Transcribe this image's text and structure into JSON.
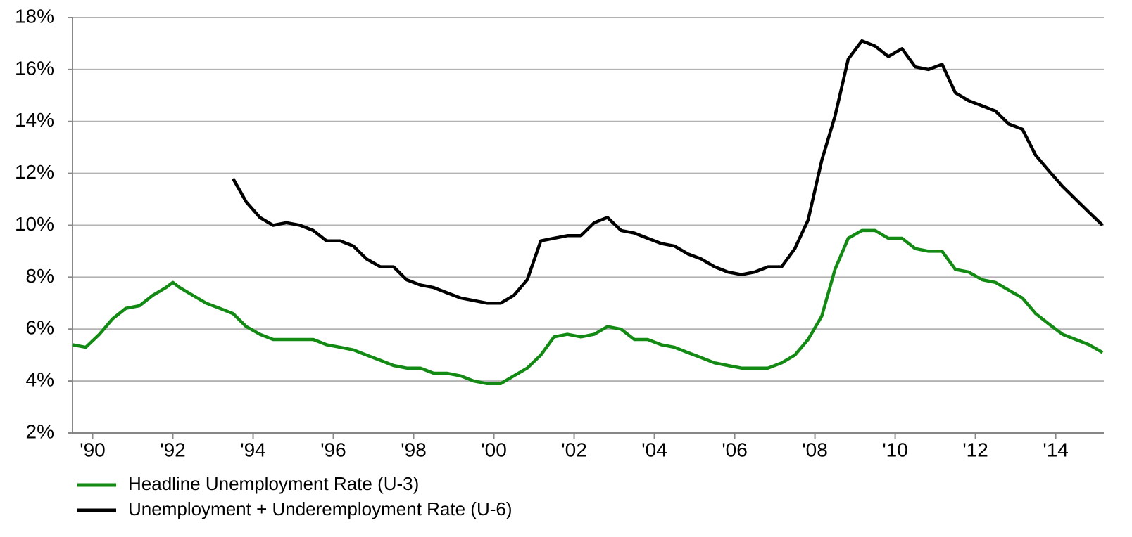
{
  "chart_data": {
    "type": "line",
    "xlim": [
      1990,
      2015.7
    ],
    "xticks": [
      {
        "value": 1990.5,
        "label": "'90"
      },
      {
        "value": 1992.5,
        "label": "'92"
      },
      {
        "value": 1994.5,
        "label": "'94"
      },
      {
        "value": 1996.5,
        "label": "'96"
      },
      {
        "value": 1998.5,
        "label": "'98"
      },
      {
        "value": 2000.5,
        "label": "'00"
      },
      {
        "value": 2002.5,
        "label": "'02"
      },
      {
        "value": 2004.5,
        "label": "'04"
      },
      {
        "value": 2006.5,
        "label": "'06"
      },
      {
        "value": 2008.5,
        "label": "'08"
      },
      {
        "value": 2010.5,
        "label": "'10"
      },
      {
        "value": 2012.5,
        "label": "'12"
      },
      {
        "value": 2014.5,
        "label": "'14"
      }
    ],
    "ylim": [
      2,
      18
    ],
    "yticks": [
      {
        "value": 2,
        "label": "2%"
      },
      {
        "value": 4,
        "label": "4%"
      },
      {
        "value": 6,
        "label": "6%"
      },
      {
        "value": 8,
        "label": "8%"
      },
      {
        "value": 10,
        "label": "10%"
      },
      {
        "value": 12,
        "label": "12%"
      },
      {
        "value": 14,
        "label": "14%"
      },
      {
        "value": 16,
        "label": "16%"
      },
      {
        "value": 18,
        "label": "18%"
      }
    ],
    "grid": true,
    "legend": "bottom-left",
    "series": [
      {
        "name": "Headline Unemployment Rate (U-3)",
        "color": "#138a13",
        "x": [
          1990,
          1990.33,
          1990.67,
          1991,
          1991.33,
          1991.67,
          1992,
          1992.33,
          1992.5,
          1992.67,
          1993,
          1993.33,
          1993.67,
          1994,
          1994.33,
          1994.67,
          1995,
          1995.33,
          1995.67,
          1996,
          1996.33,
          1996.67,
          1997,
          1997.33,
          1997.67,
          1998,
          1998.33,
          1998.67,
          1999,
          1999.33,
          1999.67,
          2000,
          2000.33,
          2000.67,
          2001,
          2001.33,
          2001.67,
          2002,
          2002.33,
          2002.67,
          2003,
          2003.33,
          2003.67,
          2004,
          2004.33,
          2004.67,
          2005,
          2005.33,
          2005.67,
          2006,
          2006.33,
          2006.67,
          2007,
          2007.33,
          2007.67,
          2008,
          2008.33,
          2008.67,
          2009,
          2009.33,
          2009.67,
          2010,
          2010.33,
          2010.67,
          2011,
          2011.33,
          2011.67,
          2012,
          2012.33,
          2012.67,
          2013,
          2013.33,
          2013.67,
          2014,
          2014.33,
          2014.67,
          2015,
          2015.33,
          2015.67
        ],
        "values": [
          5.4,
          5.3,
          5.8,
          6.4,
          6.8,
          6.9,
          7.3,
          7.6,
          7.8,
          7.6,
          7.3,
          7.0,
          6.8,
          6.6,
          6.1,
          5.8,
          5.6,
          5.6,
          5.6,
          5.6,
          5.4,
          5.3,
          5.2,
          5.0,
          4.8,
          4.6,
          4.5,
          4.5,
          4.3,
          4.3,
          4.2,
          4.0,
          3.9,
          3.9,
          4.2,
          4.5,
          5.0,
          5.7,
          5.8,
          5.7,
          5.8,
          6.1,
          6.0,
          5.6,
          5.6,
          5.4,
          5.3,
          5.1,
          4.9,
          4.7,
          4.6,
          4.5,
          4.5,
          4.5,
          4.7,
          5.0,
          5.6,
          6.5,
          8.3,
          9.5,
          9.8,
          9.8,
          9.5,
          9.5,
          9.1,
          9.0,
          9.0,
          8.3,
          8.2,
          7.9,
          7.8,
          7.5,
          7.2,
          6.6,
          6.2,
          5.8,
          5.6,
          5.4,
          5.1
        ]
      },
      {
        "name": "Unemployment + Underemployment Rate (U-6)",
        "color": "#000000",
        "x": [
          1994,
          1994.33,
          1994.67,
          1995,
          1995.33,
          1995.67,
          1996,
          1996.33,
          1996.67,
          1997,
          1997.33,
          1997.67,
          1998,
          1998.33,
          1998.67,
          1999,
          1999.33,
          1999.67,
          2000,
          2000.33,
          2000.67,
          2001,
          2001.33,
          2001.67,
          2002,
          2002.33,
          2002.67,
          2003,
          2003.33,
          2003.67,
          2004,
          2004.33,
          2004.67,
          2005,
          2005.33,
          2005.67,
          2006,
          2006.33,
          2006.67,
          2007,
          2007.33,
          2007.67,
          2008,
          2008.33,
          2008.67,
          2009,
          2009.33,
          2009.67,
          2010,
          2010.33,
          2010.67,
          2011,
          2011.33,
          2011.67,
          2012,
          2012.33,
          2012.67,
          2013,
          2013.33,
          2013.67,
          2014,
          2014.33,
          2014.67,
          2015,
          2015.33,
          2015.67
        ],
        "values": [
          11.8,
          10.9,
          10.3,
          10.0,
          10.1,
          10.0,
          9.8,
          9.4,
          9.4,
          9.2,
          8.7,
          8.4,
          8.4,
          7.9,
          7.7,
          7.6,
          7.4,
          7.2,
          7.1,
          7.0,
          7.0,
          7.3,
          7.9,
          9.4,
          9.5,
          9.6,
          9.6,
          10.1,
          10.3,
          9.8,
          9.7,
          9.5,
          9.3,
          9.2,
          8.9,
          8.7,
          8.4,
          8.2,
          8.1,
          8.2,
          8.4,
          8.4,
          9.1,
          10.2,
          12.5,
          14.2,
          16.4,
          17.1,
          16.9,
          16.5,
          16.8,
          16.1,
          16.0,
          16.2,
          15.1,
          14.8,
          14.6,
          14.4,
          13.9,
          13.7,
          12.7,
          12.1,
          11.5,
          11.0,
          10.5,
          10.0
        ]
      }
    ]
  }
}
